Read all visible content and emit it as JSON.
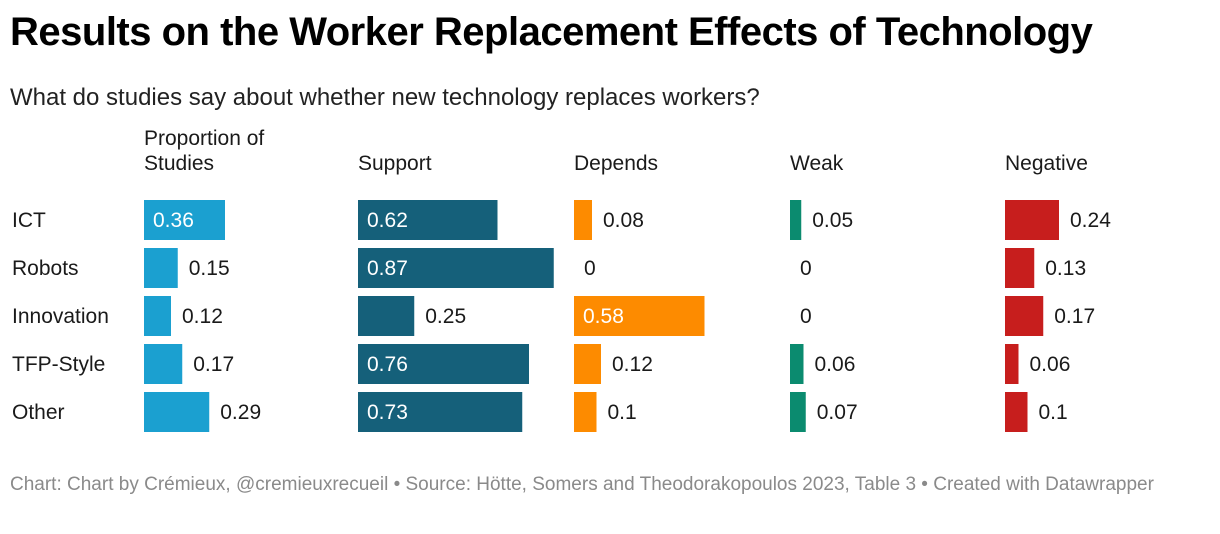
{
  "title": "Results on the Worker Replacement Effects of Technology",
  "subtitle": "What do studies say about whether new technology replaces workers?",
  "chart_data": {
    "type": "bar",
    "title": "Results on the Worker Replacement Effects of Technology",
    "subtitle": "What do studies say about whether new technology replaces workers?",
    "categories": [
      "ICT",
      "Robots",
      "Innovation",
      "TFP-Style",
      "Other"
    ],
    "series": [
      {
        "name": "Proportion of Studies",
        "header_lines": [
          "Proportion of",
          "Studies"
        ],
        "color": "#1ba0d0",
        "values": [
          0.36,
          0.15,
          0.12,
          0.17,
          0.29
        ]
      },
      {
        "name": "Support",
        "header_lines": [
          "Support"
        ],
        "color": "#15607a",
        "values": [
          0.62,
          0.87,
          0.25,
          0.76,
          0.73
        ]
      },
      {
        "name": "Depends",
        "header_lines": [
          "Depends"
        ],
        "color": "#fd8b00",
        "values": [
          0.08,
          0,
          0.58,
          0.12,
          0.1
        ]
      },
      {
        "name": "Weak",
        "header_lines": [
          "Weak"
        ],
        "color": "#0b8b6f",
        "values": [
          0.05,
          0,
          0,
          0.06,
          0.07
        ]
      },
      {
        "name": "Negative",
        "header_lines": [
          "Negative"
        ],
        "color": "#c71e1d",
        "values": [
          0.24,
          0.13,
          0.17,
          0.06,
          0.1
        ]
      }
    ],
    "value_labels": [
      [
        "0.36",
        "0.15",
        "0.12",
        "0.17",
        "0.29"
      ],
      [
        "0.62",
        "0.87",
        "0.25",
        "0.76",
        "0.73"
      ],
      [
        "0.08",
        "0",
        "0.58",
        "0.12",
        "0.1"
      ],
      [
        "0.05",
        "0",
        "0",
        "0.06",
        "0.07"
      ],
      [
        "0.24",
        "0.13",
        "0.17",
        "0.06",
        "0.1"
      ]
    ],
    "xlim": [
      0,
      1
    ]
  },
  "footer": "Chart: Chart by Crémieux, @cremieuxrecueil • Source: Hötte, Somers and Theodorakopoulos 2023, Table 3 • Created with Datawrapper"
}
